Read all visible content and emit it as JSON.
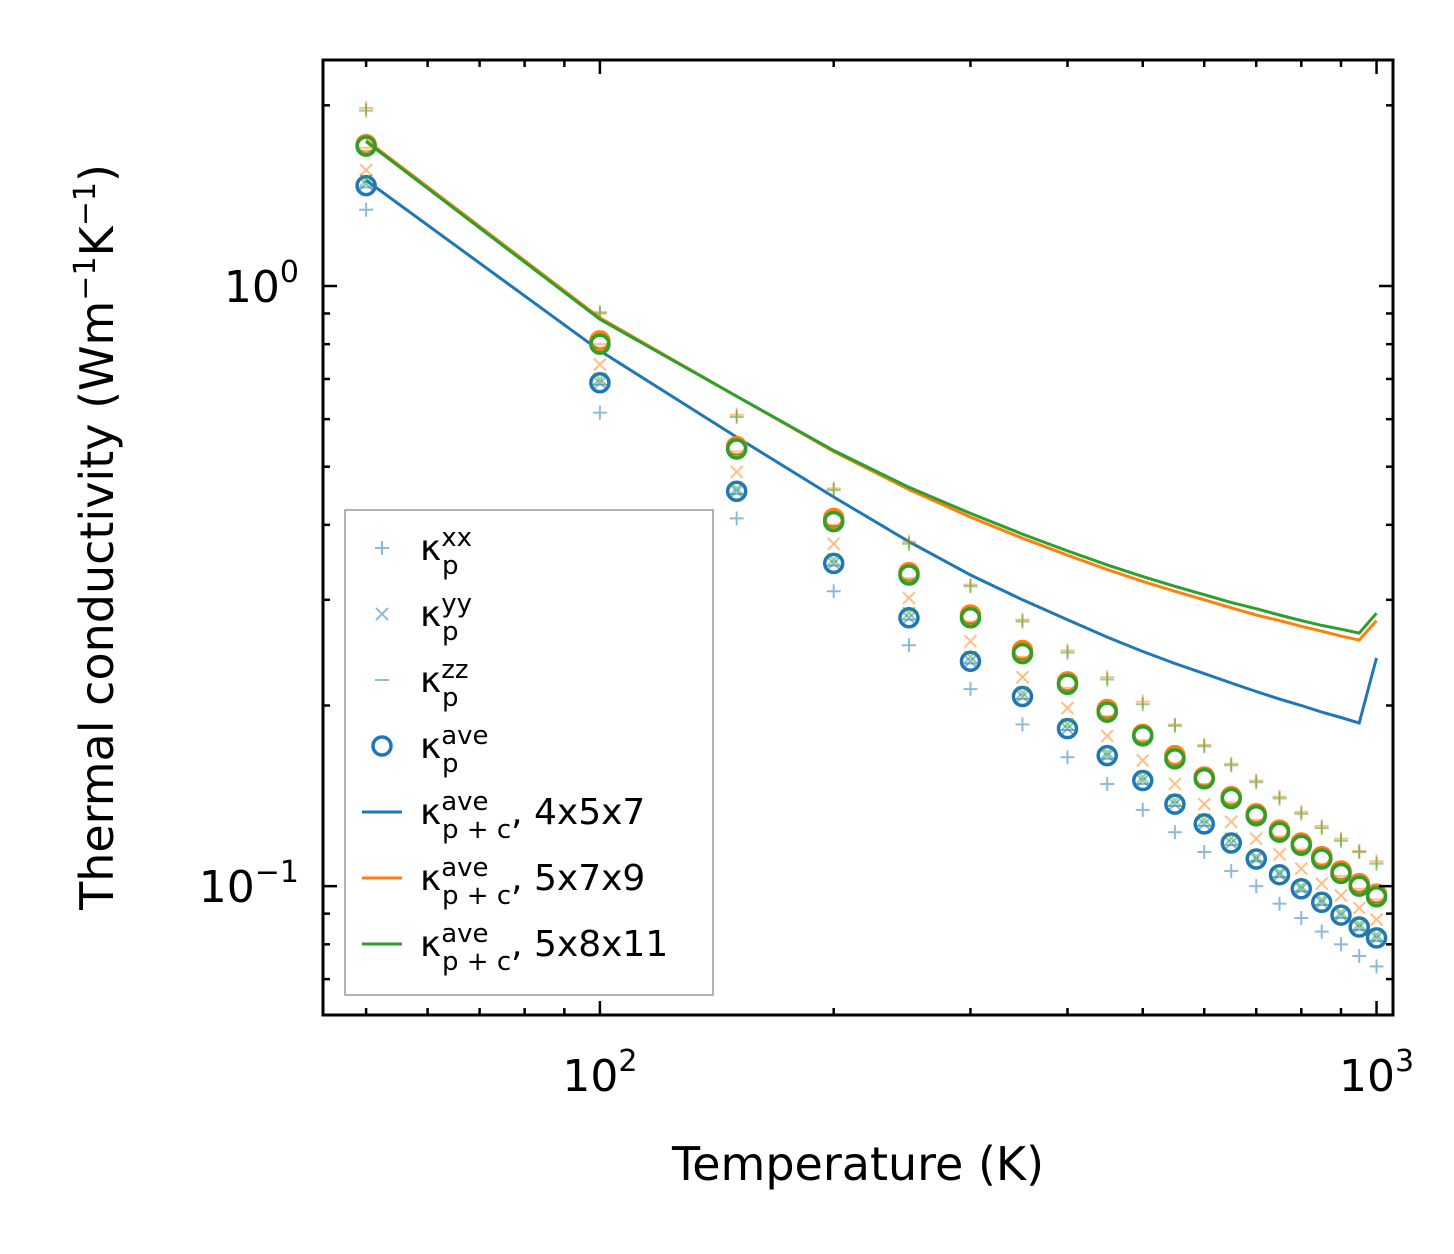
{
  "chart_data": {
    "type": "scatter",
    "xscale": "log",
    "yscale": "log",
    "xlim": [
      44,
      1050
    ],
    "ylim": [
      0.061,
      2.38
    ],
    "xlabel": "Temperature (K)",
    "ylabel": {
      "main": "Thermal conductivity (Wm",
      "exp1": "−1",
      "mid": "K",
      "exp2": "−1",
      "close": ")"
    },
    "x_ticks": [
      {
        "value": 100,
        "base": "10",
        "exp": "2"
      },
      {
        "value": 1000,
        "base": "10",
        "exp": "3"
      }
    ],
    "y_ticks": [
      {
        "value": 1,
        "base": "10",
        "exp": "0"
      },
      {
        "value": 0.1,
        "base": "10",
        "exp": "−1"
      }
    ],
    "colors": {
      "blue": "#1f77b4",
      "orange": "#ff7f0e",
      "green": "#2ca02c"
    },
    "x": [
      50,
      100,
      150,
      200,
      250,
      300,
      350,
      400,
      450,
      500,
      550,
      600,
      650,
      700,
      750,
      800,
      850,
      900,
      950,
      1000
    ],
    "series": [
      {
        "name": "kp_xx 4x5x7",
        "kind": "marker",
        "marker": "plus",
        "color": "#1f77b4",
        "alpha": 0.5,
        "values": [
          1.34,
          0.615,
          0.41,
          0.31,
          0.252,
          0.213,
          0.186,
          0.164,
          0.148,
          0.134,
          0.123,
          0.114,
          0.106,
          0.1,
          0.0935,
          0.0885,
          0.084,
          0.08,
          0.0765,
          0.0735
        ]
      },
      {
        "name": "kp_yy 4x5x7",
        "kind": "marker",
        "marker": "x",
        "color": "#1f77b4",
        "alpha": 0.5,
        "values": [
          1.48,
          0.69,
          0.455,
          0.345,
          0.28,
          0.237,
          0.207,
          0.183,
          0.165,
          0.15,
          0.137,
          0.127,
          0.118,
          0.111,
          0.1045,
          0.099,
          0.094,
          0.0895,
          0.0855,
          0.082
        ]
      },
      {
        "name": "kp_zz 4x5x7",
        "kind": "marker",
        "marker": "hline",
        "color": "#1f77b4",
        "alpha": 0.5,
        "values": [
          1.46,
          0.685,
          0.45,
          0.342,
          0.278,
          0.235,
          0.205,
          0.182,
          0.163,
          0.148,
          0.136,
          0.126,
          0.117,
          0.11,
          0.1035,
          0.098,
          0.093,
          0.0885,
          0.0845,
          0.081
        ]
      },
      {
        "name": "kp_ave 4x5x7",
        "kind": "marker",
        "marker": "circle",
        "color": "#1f77b4",
        "alpha": 1,
        "values": [
          1.47,
          0.69,
          0.455,
          0.345,
          0.28,
          0.237,
          0.207,
          0.183,
          0.165,
          0.15,
          0.137,
          0.127,
          0.118,
          0.111,
          0.1045,
          0.099,
          0.094,
          0.0895,
          0.0855,
          0.082
        ]
      },
      {
        "name": "kp_xx 5x7x9",
        "kind": "marker",
        "marker": "plus",
        "color": "#ff7f0e",
        "alpha": 0.5,
        "values": [
          1.98,
          0.905,
          0.61,
          0.46,
          0.375,
          0.318,
          0.278,
          0.247,
          0.223,
          0.203,
          0.186,
          0.172,
          0.16,
          0.15,
          0.141,
          0.133,
          0.126,
          0.12,
          0.1145,
          0.11
        ]
      },
      {
        "name": "kp_yy 5x7x9",
        "kind": "marker",
        "marker": "x",
        "color": "#ff7f0e",
        "alpha": 0.5,
        "values": [
          1.56,
          0.74,
          0.49,
          0.372,
          0.302,
          0.256,
          0.223,
          0.198,
          0.178,
          0.162,
          0.148,
          0.137,
          0.128,
          0.12,
          0.113,
          0.107,
          0.101,
          0.0965,
          0.092,
          0.088
        ]
      },
      {
        "name": "kp_zz 5x7x9",
        "kind": "marker",
        "marker": "hline",
        "color": "#ff7f0e",
        "alpha": 0.5,
        "values": [
          1.7,
          0.8,
          0.53,
          0.4,
          0.326,
          0.276,
          0.241,
          0.214,
          0.192,
          0.175,
          0.16,
          0.148,
          0.138,
          0.129,
          0.121,
          0.115,
          0.109,
          0.104,
          0.099,
          0.095
        ]
      },
      {
        "name": "kp_ave 5x7x9",
        "kind": "marker",
        "marker": "circle",
        "color": "#ff7f0e",
        "alpha": 1,
        "values": [
          1.72,
          0.81,
          0.54,
          0.41,
          0.333,
          0.283,
          0.247,
          0.219,
          0.197,
          0.179,
          0.165,
          0.152,
          0.141,
          0.132,
          0.124,
          0.118,
          0.112,
          0.106,
          0.101,
          0.097
        ]
      },
      {
        "name": "kp_xx 5x8x11",
        "kind": "marker",
        "marker": "plus",
        "color": "#2ca02c",
        "alpha": 0.5,
        "values": [
          1.96,
          0.9,
          0.605,
          0.457,
          0.372,
          0.316,
          0.276,
          0.245,
          0.221,
          0.201,
          0.185,
          0.171,
          0.159,
          0.149,
          0.14,
          0.132,
          0.125,
          0.119,
          0.114,
          0.109
        ]
      },
      {
        "name": "kp_yy 5x8x11",
        "kind": "marker",
        "marker": "x",
        "color": "#2ca02c",
        "alpha": 0.5,
        "values": [
          1.5,
          0.7,
          0.46,
          0.35,
          0.285,
          0.241,
          0.21,
          0.186,
          0.167,
          0.152,
          0.139,
          0.129,
          0.12,
          0.112,
          0.1055,
          0.1,
          0.095,
          0.0905,
          0.0865,
          0.083
        ]
      },
      {
        "name": "kp_zz 5x8x11",
        "kind": "marker",
        "marker": "hline",
        "color": "#2ca02c",
        "alpha": 0.5,
        "values": [
          1.68,
          0.79,
          0.525,
          0.398,
          0.324,
          0.274,
          0.239,
          0.212,
          0.191,
          0.174,
          0.159,
          0.147,
          0.137,
          0.128,
          0.12,
          0.114,
          0.108,
          0.103,
          0.098,
          0.094
        ]
      },
      {
        "name": "kp_ave 5x8x11",
        "kind": "marker",
        "marker": "circle",
        "color": "#2ca02c",
        "alpha": 1,
        "values": [
          1.71,
          0.8,
          0.535,
          0.405,
          0.33,
          0.28,
          0.244,
          0.217,
          0.195,
          0.178,
          0.163,
          0.151,
          0.14,
          0.131,
          0.123,
          0.117,
          0.111,
          0.105,
          0.1,
          0.096
        ]
      },
      {
        "name": "kp+c_ave 4x5x7",
        "kind": "line",
        "color": "#1f77b4",
        "values": [
          1.5,
          0.78,
          0.56,
          0.445,
          0.375,
          0.33,
          0.3,
          0.278,
          0.26,
          0.246,
          0.235,
          0.226,
          0.218,
          0.211,
          0.205,
          0.2,
          0.195,
          0.191,
          0.187,
          0.24
        ]
      },
      {
        "name": "kp+c_ave 5x7x9",
        "kind": "line",
        "color": "#ff7f0e",
        "values": [
          1.75,
          0.885,
          0.655,
          0.53,
          0.458,
          0.412,
          0.38,
          0.356,
          0.337,
          0.322,
          0.31,
          0.3,
          0.291,
          0.283,
          0.277,
          0.271,
          0.266,
          0.261,
          0.257,
          0.277
        ]
      },
      {
        "name": "kp+c_ave 5x8x11",
        "kind": "line",
        "color": "#2ca02c",
        "values": [
          1.74,
          0.88,
          0.655,
          0.532,
          0.462,
          0.418,
          0.386,
          0.362,
          0.343,
          0.328,
          0.316,
          0.306,
          0.297,
          0.29,
          0.283,
          0.277,
          0.272,
          0.268,
          0.264,
          0.285
        ]
      }
    ],
    "legend": {
      "placement": "lower-left",
      "entries": [
        {
          "marker": "plus",
          "color": "#1f77b4",
          "symbol": "κ",
          "sub": "p",
          "sup": "xx",
          "suffix": ""
        },
        {
          "marker": "x",
          "color": "#1f77b4",
          "symbol": "κ",
          "sub": "p",
          "sup": "yy",
          "suffix": ""
        },
        {
          "marker": "hline",
          "color": "#1f77b4",
          "symbol": "κ",
          "sub": "p",
          "sup": "zz",
          "suffix": ""
        },
        {
          "marker": "circle",
          "color": "#1f77b4",
          "symbol": "κ",
          "sub": "p",
          "sup": "ave",
          "suffix": ""
        },
        {
          "marker": "line",
          "color": "#1f77b4",
          "symbol": "κ",
          "sub": "p + c",
          "sup": "ave",
          "suffix": ", 4x5x7"
        },
        {
          "marker": "line",
          "color": "#ff7f0e",
          "symbol": "κ",
          "sub": "p + c",
          "sup": "ave",
          "suffix": ", 5x7x9"
        },
        {
          "marker": "line",
          "color": "#2ca02c",
          "symbol": "κ",
          "sub": "p + c",
          "sup": "ave",
          "suffix": ", 5x8x11"
        }
      ]
    }
  }
}
